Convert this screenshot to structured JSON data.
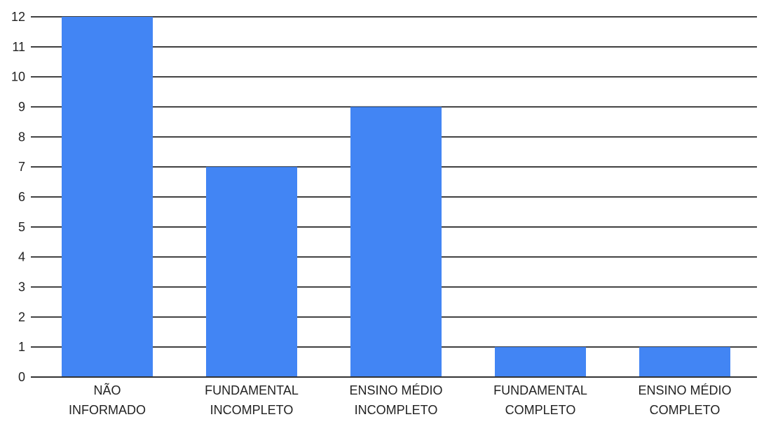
{
  "chart_data": {
    "type": "bar",
    "categories": [
      [
        "NÃO",
        "INFORMADO"
      ],
      [
        "FUNDAMENTAL",
        "INCOMPLETO"
      ],
      [
        "ENSINO MÉDIO",
        "INCOMPLETO"
      ],
      [
        "FUNDAMENTAL",
        "COMPLETO"
      ],
      [
        "ENSINO MÉDIO",
        "COMPLETO"
      ]
    ],
    "values": [
      12,
      7,
      9,
      1,
      1
    ],
    "ylim": [
      0,
      12
    ],
    "yticks": [
      "0",
      "1",
      "2",
      "3",
      "4",
      "5",
      "6",
      "7",
      "8",
      "9",
      "10",
      "11",
      "12"
    ],
    "grid": true,
    "legend": "none",
    "bar_color": "#4285F4",
    "grid_color": "#000000"
  }
}
